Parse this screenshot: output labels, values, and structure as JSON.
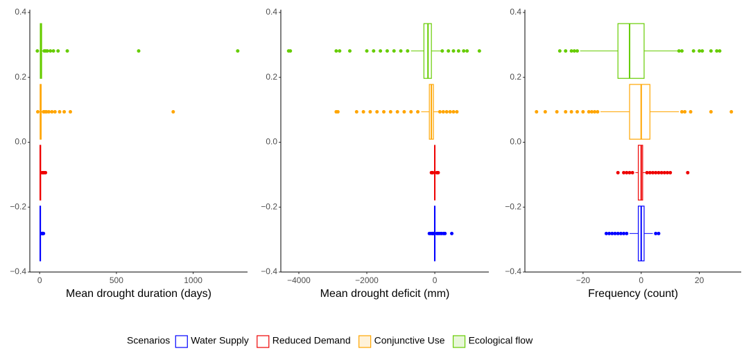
{
  "chart_data": [
    {
      "type": "boxplot",
      "xlabel": "Mean drought duration (days)",
      "xlim": [
        -64,
        1354
      ],
      "xticks": [
        0,
        500,
        1000
      ],
      "ylim": [
        -0.4,
        0.4
      ],
      "yticks": [
        {
          "value": -0.4,
          "label": "−0.4"
        },
        {
          "value": -0.2,
          "label": "−0.2"
        },
        {
          "value": 0,
          "label": "0.0"
        },
        0.2,
        0.4
      ],
      "legend_title": "Scenarios",
      "series": [
        {
          "name": "Water Supply",
          "color": "#0000ff",
          "min": 0,
          "q1": 2,
          "median": 4,
          "q3": 6,
          "max": 12,
          "outliers": [
            14,
            16,
            18,
            20,
            22,
            25
          ]
        },
        {
          "name": "Reduced Demand",
          "color": "#ee0000",
          "min": 0,
          "q1": 2,
          "median": 4,
          "q3": 7,
          "max": 14,
          "outliers": [
            16,
            20,
            25,
            30,
            38
          ]
        },
        {
          "name": "Conjunctive Use",
          "color": "#ffa500",
          "min": 0,
          "q1": 3,
          "median": 6,
          "q3": 10,
          "max": 20,
          "outliers": [
            -12,
            25,
            35,
            45,
            60,
            80,
            100,
            130,
            160,
            200,
            870
          ]
        },
        {
          "name": "Ecological flow",
          "color": "#66cc00",
          "min": 0,
          "q1": 4,
          "median": 8,
          "q3": 13,
          "max": 25,
          "outliers": [
            -15,
            30,
            40,
            50,
            70,
            90,
            120,
            180,
            645,
            1290
          ]
        }
      ]
    },
    {
      "type": "boxplot",
      "xlabel": "Mean drought deficit (mm)",
      "xlim": [
        -4530,
        1590
      ],
      "xticks": [
        {
          "value": -4000,
          "label": "−4000"
        },
        {
          "value": -2000,
          "label": "−2000"
        },
        0
      ],
      "ylim": [
        -0.4,
        0.4
      ],
      "yticks": [
        {
          "value": -0.4,
          "label": "−0.4"
        },
        {
          "value": -0.2,
          "label": "−0.2"
        },
        {
          "value": 0,
          "label": "0.0"
        },
        0.2,
        0.4
      ],
      "series": [
        {
          "name": "Water Supply",
          "color": "#0000ff",
          "min": -30,
          "q1": -10,
          "median": 0,
          "q3": 5,
          "max": 20,
          "outliers": [
            -160,
            -120,
            -80,
            -60,
            -40,
            60,
            100,
            150,
            200,
            260,
            300,
            500
          ]
        },
        {
          "name": "Reduced Demand",
          "color": "#ee0000",
          "min": -20,
          "q1": -5,
          "median": 0,
          "q3": 5,
          "max": 20,
          "outliers": [
            -100,
            -80,
            -60,
            60,
            80,
            100
          ]
        },
        {
          "name": "Conjunctive Use",
          "color": "#ffa500",
          "min": -400,
          "q1": -160,
          "median": -100,
          "q3": -40,
          "max": 100,
          "outliers": [
            -2900,
            -2850,
            -2300,
            -2100,
            -1900,
            -1700,
            -1500,
            -1300,
            -1100,
            -900,
            -700,
            -500,
            150,
            250,
            350,
            450,
            550,
            650
          ]
        },
        {
          "name": "Ecological flow",
          "color": "#66cc00",
          "min": -700,
          "q1": -320,
          "median": -200,
          "q3": -100,
          "max": 200,
          "outliers": [
            -4300,
            -4250,
            -2900,
            -2800,
            -2500,
            -2000,
            -1800,
            -1600,
            -1400,
            -1200,
            -1000,
            -800,
            220,
            400,
            550,
            700,
            850,
            950,
            1312
          ]
        }
      ]
    },
    {
      "type": "boxplot",
      "xlabel": "Frequency (count)",
      "xlim": [
        -40,
        34.4
      ],
      "xticks": [
        {
          "value": -20,
          "label": "−20"
        },
        0,
        20
      ],
      "ylim": [
        -0.4,
        0.4
      ],
      "yticks": [
        {
          "value": -0.4,
          "label": "−0.4"
        },
        {
          "value": -0.2,
          "label": "−0.2"
        },
        {
          "value": 0,
          "label": "0.0"
        },
        0.2,
        0.4
      ],
      "series": [
        {
          "name": "Water Supply",
          "color": "#0000ff",
          "min": -4,
          "q1": -1,
          "median": 0,
          "q3": 1,
          "max": 4,
          "outliers": [
            -12,
            -11,
            -10,
            -9,
            -8,
            -7,
            -6,
            -5,
            5,
            6
          ]
        },
        {
          "name": "Reduced Demand",
          "color": "#ee0000",
          "min": -2,
          "q1": -1,
          "median": 0,
          "q3": 0.5,
          "max": 1.5,
          "outliers": [
            -8,
            -6,
            -5,
            -4,
            -3,
            2,
            3,
            4,
            5,
            6,
            7,
            8,
            9,
            10,
            16
          ]
        },
        {
          "name": "Conjunctive Use",
          "color": "#ffa500",
          "min": -14,
          "q1": -4,
          "median": 0,
          "q3": 3,
          "max": 13,
          "outliers": [
            -36,
            -33,
            -29,
            -26,
            -24,
            -22,
            -20,
            -18,
            -17,
            -16,
            -15,
            14,
            15,
            17,
            24,
            31
          ]
        },
        {
          "name": "Ecological flow",
          "color": "#66cc00",
          "min": -21,
          "q1": -8,
          "median": -4,
          "q3": 1,
          "max": 12.6,
          "outliers": [
            -28,
            -26,
            -24,
            -23,
            -22,
            13,
            14,
            18,
            20,
            21,
            24,
            26,
            27
          ]
        }
      ]
    }
  ]
}
